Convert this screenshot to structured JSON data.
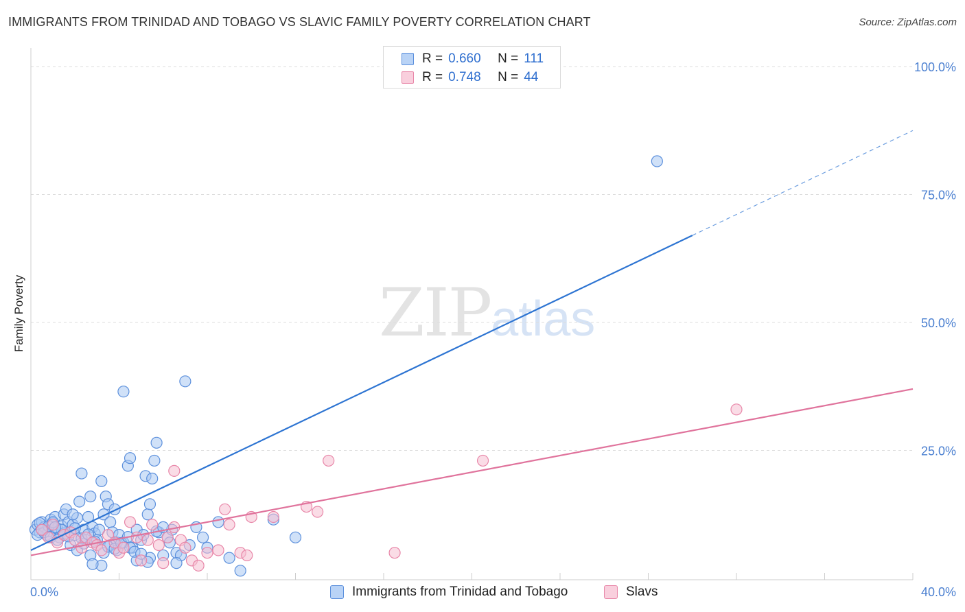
{
  "title": "IMMIGRANTS FROM TRINIDAD AND TOBAGO VS SLAVIC FAMILY POVERTY CORRELATION CHART",
  "source": "Source: ZipAtlas.com",
  "watermark": {
    "zip": "ZIP",
    "atlas": "atlas"
  },
  "legend": {
    "series1": {
      "r_label": "R =",
      "r_value": "0.660",
      "n_label": "N =",
      "n_value": "111"
    },
    "series2": {
      "r_label": "R =",
      "r_value": "0.748",
      "n_label": "N =",
      "n_value": "44"
    }
  },
  "colors": {
    "blue_fill": "#a9c8f3",
    "blue_stroke": "#5b8fdc",
    "blue_line": "#2d74d2",
    "pink_fill": "#f6bfd2",
    "pink_stroke": "#e886a8",
    "pink_line": "#e0739c",
    "axis_text": "#4a7fd0",
    "grid": "#dddddd"
  },
  "chart_data": {
    "type": "scatter",
    "title": "IMMIGRANTS FROM TRINIDAD AND TOBAGO VS SLAVIC FAMILY POVERTY CORRELATION CHART",
    "xlabel": "",
    "ylabel": "Family Poverty",
    "xlim": [
      0,
      40
    ],
    "ylim": [
      0,
      100
    ],
    "x_tick_labels": [
      {
        "value": 0,
        "label": "0.0%"
      },
      {
        "value": 40,
        "label": "40.0%"
      }
    ],
    "y_tick_labels": [
      {
        "value": 25,
        "label": "25.0%"
      },
      {
        "value": 50,
        "label": "50.0%"
      },
      {
        "value": 75,
        "label": "75.0%"
      },
      {
        "value": 100,
        "label": "100.0%"
      }
    ],
    "x_grid_values": [
      0,
      4,
      8,
      12,
      16,
      20,
      24,
      28,
      32,
      36,
      40
    ],
    "y_grid_values": [
      25,
      50,
      75,
      100
    ],
    "legend_position": "top-center",
    "series": [
      {
        "name": "Immigrants from Trinidad and Tobago",
        "color": "#5b8fdc",
        "R": 0.66,
        "N": 111,
        "trend": {
          "x0": 0,
          "y0": 5.5,
          "x1": 30,
          "y1": 67,
          "dashed_to_x": 40,
          "dashed_to_y": 87.5
        },
        "points": [
          [
            0.2,
            9.5
          ],
          [
            0.3,
            10.5
          ],
          [
            0.4,
            9.0
          ],
          [
            0.5,
            11.0
          ],
          [
            0.6,
            10.0
          ],
          [
            0.7,
            8.5
          ],
          [
            0.8,
            9.2
          ],
          [
            0.9,
            11.5
          ],
          [
            1.0,
            10.8
          ],
          [
            1.1,
            12.0
          ],
          [
            1.2,
            9.8
          ],
          [
            1.3,
            8.0
          ],
          [
            1.4,
            10.2
          ],
          [
            1.5,
            12.5
          ],
          [
            1.6,
            13.5
          ],
          [
            1.7,
            11.0
          ],
          [
            1.8,
            9.0
          ],
          [
            1.9,
            10.5
          ],
          [
            2.0,
            8.5
          ],
          [
            2.1,
            11.8
          ],
          [
            2.2,
            15.0
          ],
          [
            2.3,
            20.5
          ],
          [
            2.4,
            9.5
          ],
          [
            2.5,
            7.5
          ],
          [
            2.6,
            12.0
          ],
          [
            2.7,
            16.0
          ],
          [
            2.8,
            10.0
          ],
          [
            2.9,
            8.8
          ],
          [
            3.0,
            6.5
          ],
          [
            3.1,
            9.5
          ],
          [
            3.2,
            19.0
          ],
          [
            3.3,
            12.5
          ],
          [
            3.4,
            16.0
          ],
          [
            3.5,
            14.5
          ],
          [
            3.6,
            11.0
          ],
          [
            3.7,
            9.0
          ],
          [
            3.8,
            13.5
          ],
          [
            3.9,
            7.0
          ],
          [
            4.0,
            8.5
          ],
          [
            4.2,
            36.5
          ],
          [
            4.4,
            22.0
          ],
          [
            4.5,
            23.5
          ],
          [
            4.6,
            6.0
          ],
          [
            4.8,
            9.5
          ],
          [
            5.0,
            7.5
          ],
          [
            5.2,
            20.0
          ],
          [
            5.3,
            12.5
          ],
          [
            5.4,
            14.5
          ],
          [
            5.5,
            19.5
          ],
          [
            5.6,
            23.0
          ],
          [
            5.7,
            26.5
          ],
          [
            5.8,
            9.0
          ],
          [
            6.0,
            4.5
          ],
          [
            6.2,
            8.0
          ],
          [
            6.4,
            9.5
          ],
          [
            6.6,
            5.0
          ],
          [
            6.8,
            4.5
          ],
          [
            7.0,
            38.5
          ],
          [
            7.2,
            6.5
          ],
          [
            7.5,
            10.0
          ],
          [
            8.0,
            6.0
          ],
          [
            8.5,
            11.0
          ],
          [
            9.0,
            4.0
          ],
          [
            9.5,
            1.5
          ],
          [
            0.3,
            8.5
          ],
          [
            0.6,
            9.0
          ],
          [
            0.9,
            8.0
          ],
          [
            1.2,
            7.5
          ],
          [
            1.5,
            8.8
          ],
          [
            1.8,
            6.5
          ],
          [
            2.1,
            5.5
          ],
          [
            2.4,
            6.8
          ],
          [
            2.7,
            4.5
          ],
          [
            3.0,
            7.5
          ],
          [
            3.3,
            5.0
          ],
          [
            3.6,
            6.5
          ],
          [
            3.9,
            5.5
          ],
          [
            4.2,
            7.0
          ],
          [
            4.5,
            6.0
          ],
          [
            4.8,
            3.5
          ],
          [
            5.1,
            8.5
          ],
          [
            5.4,
            4.0
          ],
          [
            5.7,
            9.2
          ],
          [
            6.0,
            10.0
          ],
          [
            6.3,
            7.0
          ],
          [
            6.6,
            3.0
          ],
          [
            0.4,
            10.8
          ],
          [
            0.8,
            10.2
          ],
          [
            1.0,
            11.0
          ],
          [
            1.4,
            9.5
          ],
          [
            1.7,
            8.2
          ],
          [
            2.0,
            9.8
          ],
          [
            2.3,
            7.8
          ],
          [
            2.6,
            8.6
          ],
          [
            2.9,
            7.2
          ],
          [
            3.2,
            2.5
          ],
          [
            3.5,
            6.2
          ],
          [
            3.8,
            5.8
          ],
          [
            4.1,
            6.9
          ],
          [
            4.4,
            8.1
          ],
          [
            4.7,
            5.2
          ],
          [
            5.0,
            4.8
          ],
          [
            5.3,
            3.2
          ],
          [
            7.8,
            8.0
          ],
          [
            11.0,
            11.5
          ],
          [
            12.0,
            8.0
          ],
          [
            0.5,
            9.5
          ],
          [
            1.1,
            10.0
          ],
          [
            2.8,
            2.8
          ],
          [
            28.4,
            81.5
          ],
          [
            1.9,
            12.5
          ]
        ]
      },
      {
        "name": "Slavs",
        "color": "#e886a8",
        "R": 0.748,
        "N": 44,
        "trend": {
          "x0": 0,
          "y0": 4.5,
          "x1": 40,
          "y1": 37
        },
        "points": [
          [
            0.5,
            9.5
          ],
          [
            0.8,
            8.0
          ],
          [
            1.0,
            10.5
          ],
          [
            1.2,
            7.0
          ],
          [
            1.5,
            8.5
          ],
          [
            1.8,
            9.0
          ],
          [
            2.0,
            7.5
          ],
          [
            2.3,
            6.0
          ],
          [
            2.5,
            8.0
          ],
          [
            2.8,
            7.0
          ],
          [
            3.0,
            6.5
          ],
          [
            3.2,
            5.5
          ],
          [
            3.5,
            8.5
          ],
          [
            3.8,
            7.0
          ],
          [
            4.0,
            5.0
          ],
          [
            4.2,
            6.0
          ],
          [
            4.5,
            11.0
          ],
          [
            4.8,
            8.0
          ],
          [
            5.0,
            3.5
          ],
          [
            5.3,
            7.5
          ],
          [
            5.5,
            10.5
          ],
          [
            5.8,
            6.5
          ],
          [
            6.0,
            3.0
          ],
          [
            6.2,
            8.0
          ],
          [
            6.5,
            10.0
          ],
          [
            6.8,
            7.5
          ],
          [
            7.0,
            6.0
          ],
          [
            7.3,
            3.5
          ],
          [
            7.6,
            2.5
          ],
          [
            8.0,
            5.0
          ],
          [
            8.5,
            5.5
          ],
          [
            8.8,
            13.5
          ],
          [
            9.0,
            10.5
          ],
          [
            9.5,
            5.0
          ],
          [
            9.8,
            4.5
          ],
          [
            10.0,
            12.0
          ],
          [
            11.0,
            12.0
          ],
          [
            12.5,
            14.0
          ],
          [
            13.0,
            13.0
          ],
          [
            13.5,
            23.0
          ],
          [
            16.5,
            5.0
          ],
          [
            20.5,
            23.0
          ],
          [
            32.0,
            33.0
          ],
          [
            6.5,
            21.0
          ]
        ]
      }
    ]
  },
  "bottom_legend": {
    "item1": "Immigrants from Trinidad and Tobago",
    "item2": "Slavs"
  }
}
